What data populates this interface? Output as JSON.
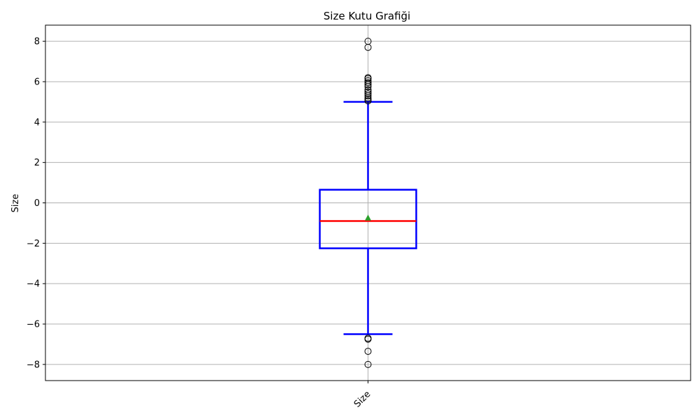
{
  "chart_data": {
    "type": "box",
    "title": "Size Kutu Grafiği",
    "xlabel": "",
    "ylabel": "Size",
    "categories": [
      "Size"
    ],
    "ylim": [
      -8.8,
      8.8
    ],
    "yticks": [
      -8,
      -6,
      -4,
      -2,
      0,
      2,
      4,
      6,
      8
    ],
    "grid": true,
    "box": {
      "whisker_low": -6.5,
      "q1": -2.25,
      "median": -0.9,
      "mean": -0.75,
      "q3": 0.65,
      "whisker_high": 5.0
    },
    "outliers": [
      8.0,
      7.7,
      6.2,
      6.15,
      6.05,
      5.95,
      5.85,
      5.75,
      5.6,
      5.5,
      5.4,
      5.3,
      5.2,
      5.12,
      5.05,
      -6.7,
      -6.75,
      -7.35,
      -8.0
    ],
    "colors": {
      "box": "#0000ff",
      "median": "#ff0000",
      "mean": "#2ca02c",
      "outlier_edge": "#000000",
      "grid": "#b0b0b0"
    }
  }
}
